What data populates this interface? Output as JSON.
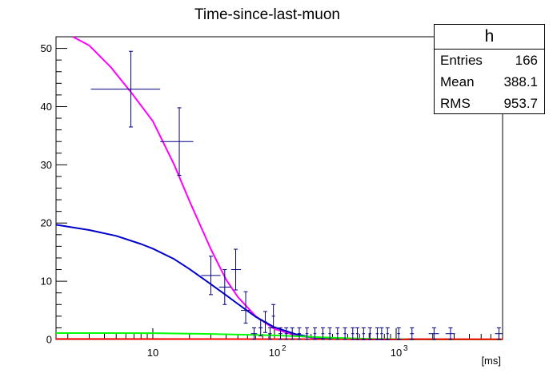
{
  "chart_data": {
    "type": "scatter",
    "title": "Time-since-last-muon",
    "xlabel": "[ms]",
    "ylabel": "",
    "x_scale": "log",
    "xlim": [
      1.6,
      7500
    ],
    "ylim": [
      0,
      52
    ],
    "yticks": [
      0,
      10,
      20,
      30,
      40,
      50
    ],
    "xticks": [
      {
        "value": 10,
        "base": "10",
        "exp": ""
      },
      {
        "value": 100,
        "base": "10",
        "exp": "2"
      },
      {
        "value": 1000,
        "base": "10",
        "exp": "3"
      }
    ],
    "grid": false,
    "legend": "none",
    "stats": {
      "name": "h",
      "rows": [
        {
          "label": "Entries",
          "value": "166"
        },
        {
          "label": "Mean",
          "value": "388.1"
        },
        {
          "label": "RMS",
          "value": "953.7"
        }
      ]
    },
    "points": [
      {
        "x": 6.6,
        "y": 43,
        "xlo": 3.1,
        "xhi": 11.5,
        "ylo": 36.5,
        "yhi": 49.5
      },
      {
        "x": 16.5,
        "y": 34,
        "xlo": 11.5,
        "xhi": 21.5,
        "ylo": 28.2,
        "yhi": 39.8
      },
      {
        "x": 30,
        "y": 11,
        "xlo": 25,
        "xhi": 36,
        "ylo": 7.7,
        "yhi": 14.3
      },
      {
        "x": 39,
        "y": 9,
        "xlo": 35,
        "xhi": 44,
        "ylo": 6.0,
        "yhi": 12.0
      },
      {
        "x": 48,
        "y": 12,
        "xlo": 44,
        "xhi": 53,
        "ylo": 8.5,
        "yhi": 15.5
      },
      {
        "x": 58,
        "y": 5,
        "xlo": 53,
        "xhi": 63,
        "ylo": 2.8,
        "yhi": 8.2
      },
      {
        "x": 68,
        "y": 1,
        "xlo": 64,
        "xhi": 72,
        "ylo": 0,
        "yhi": 2.0
      },
      {
        "x": 77,
        "y": 2,
        "xlo": 74,
        "xhi": 80,
        "ylo": 0.6,
        "yhi": 3.4
      },
      {
        "x": 84,
        "y": 3,
        "xlo": 81,
        "xhi": 87,
        "ylo": 1.2,
        "yhi": 4.8
      },
      {
        "x": 92,
        "y": 1,
        "xlo": 89,
        "xhi": 95,
        "ylo": 0,
        "yhi": 2.0
      },
      {
        "x": 98,
        "y": 4,
        "xlo": 95,
        "xhi": 101,
        "ylo": 2.0,
        "yhi": 6.0
      },
      {
        "x": 112,
        "y": 1,
        "xlo": 108,
        "xhi": 116,
        "ylo": 0,
        "yhi": 2.0
      },
      {
        "x": 125,
        "y": 1,
        "xlo": 121,
        "xhi": 129,
        "ylo": 0,
        "yhi": 2.0
      },
      {
        "x": 140,
        "y": 1,
        "xlo": 136,
        "xhi": 144,
        "ylo": 0,
        "yhi": 2.0
      },
      {
        "x": 160,
        "y": 1,
        "xlo": 155,
        "xhi": 165,
        "ylo": 0,
        "yhi": 2.0
      },
      {
        "x": 185,
        "y": 1,
        "xlo": 180,
        "xhi": 190,
        "ylo": 0,
        "yhi": 2.0
      },
      {
        "x": 215,
        "y": 1,
        "xlo": 209,
        "xhi": 221,
        "ylo": 0,
        "yhi": 2.0
      },
      {
        "x": 250,
        "y": 1,
        "xlo": 243,
        "xhi": 257,
        "ylo": 0,
        "yhi": 2.0
      },
      {
        "x": 285,
        "y": 1,
        "xlo": 278,
        "xhi": 292,
        "ylo": 0,
        "yhi": 2.0
      },
      {
        "x": 330,
        "y": 1,
        "xlo": 322,
        "xhi": 338,
        "ylo": 0,
        "yhi": 2.0
      },
      {
        "x": 380,
        "y": 1,
        "xlo": 370,
        "xhi": 390,
        "ylo": 0,
        "yhi": 2.0
      },
      {
        "x": 440,
        "y": 1,
        "xlo": 428,
        "xhi": 452,
        "ylo": 0,
        "yhi": 2.0
      },
      {
        "x": 480,
        "y": 1,
        "xlo": 468,
        "xhi": 492,
        "ylo": 0,
        "yhi": 2.0
      },
      {
        "x": 540,
        "y": 1,
        "xlo": 526,
        "xhi": 554,
        "ylo": 0,
        "yhi": 2.0
      },
      {
        "x": 610,
        "y": 1,
        "xlo": 594,
        "xhi": 626,
        "ylo": 0,
        "yhi": 2.0
      },
      {
        "x": 700,
        "y": 1,
        "xlo": 682,
        "xhi": 718,
        "ylo": 0,
        "yhi": 2.0
      },
      {
        "x": 760,
        "y": 1,
        "xlo": 741,
        "xhi": 779,
        "ylo": 0,
        "yhi": 2.0
      },
      {
        "x": 850,
        "y": 1,
        "xlo": 829,
        "xhi": 871,
        "ylo": 0,
        "yhi": 2.0
      },
      {
        "x": 1050,
        "y": 1,
        "xlo": 1020,
        "xhi": 1080,
        "ylo": 0,
        "yhi": 2.0
      },
      {
        "x": 1350,
        "y": 1,
        "xlo": 1300,
        "xhi": 1400,
        "ylo": 0,
        "yhi": 2.0
      },
      {
        "x": 2050,
        "y": 1,
        "xlo": 1850,
        "xhi": 2250,
        "ylo": 0,
        "yhi": 2.0
      },
      {
        "x": 2800,
        "y": 1,
        "xlo": 2550,
        "xhi": 3050,
        "ylo": 0,
        "yhi": 2.0
      },
      {
        "x": 7000,
        "y": 1,
        "xlo": 6500,
        "xhi": 7500,
        "ylo": 0,
        "yhi": 2.0
      }
    ],
    "curves": [
      {
        "color": "#ff00ff",
        "points": [
          [
            2.2,
            52
          ],
          [
            3,
            50.5
          ],
          [
            4.5,
            46.8
          ],
          [
            6.6,
            42.5
          ],
          [
            10,
            37.5
          ],
          [
            15,
            30
          ],
          [
            20,
            23.8
          ],
          [
            30,
            15.5
          ],
          [
            40,
            10.3
          ],
          [
            50,
            7.3
          ],
          [
            70,
            4.0
          ],
          [
            100,
            1.8
          ],
          [
            150,
            0.7
          ],
          [
            200,
            0.3
          ],
          [
            300,
            0.08
          ],
          [
            500,
            0.02
          ],
          [
            7500,
            0
          ]
        ]
      },
      {
        "color": "#0000cc",
        "points": [
          [
            1.6,
            19.7
          ],
          [
            3,
            18.8
          ],
          [
            5,
            17.8
          ],
          [
            8,
            16.4
          ],
          [
            10,
            15.6
          ],
          [
            15,
            13.8
          ],
          [
            20,
            12.1
          ],
          [
            30,
            9.5
          ],
          [
            40,
            7.6
          ],
          [
            50,
            6.1
          ],
          [
            70,
            3.9
          ],
          [
            100,
            2.1
          ],
          [
            150,
            0.9
          ],
          [
            200,
            0.4
          ],
          [
            300,
            0.12
          ],
          [
            500,
            0.03
          ],
          [
            7500,
            0
          ]
        ]
      },
      {
        "color": "#00ff00",
        "points": [
          [
            1.6,
            1.1
          ],
          [
            10,
            1.08
          ],
          [
            30,
            0.95
          ],
          [
            100,
            0.7
          ],
          [
            200,
            0.45
          ],
          [
            400,
            0.2
          ],
          [
            700,
            0.08
          ],
          [
            1500,
            0.02
          ],
          [
            7500,
            0
          ]
        ]
      },
      {
        "color": "#ff0000",
        "points": [
          [
            1.6,
            0.08
          ],
          [
            7500,
            0.04
          ]
        ]
      }
    ],
    "colors": {
      "points": "#000080"
    }
  }
}
